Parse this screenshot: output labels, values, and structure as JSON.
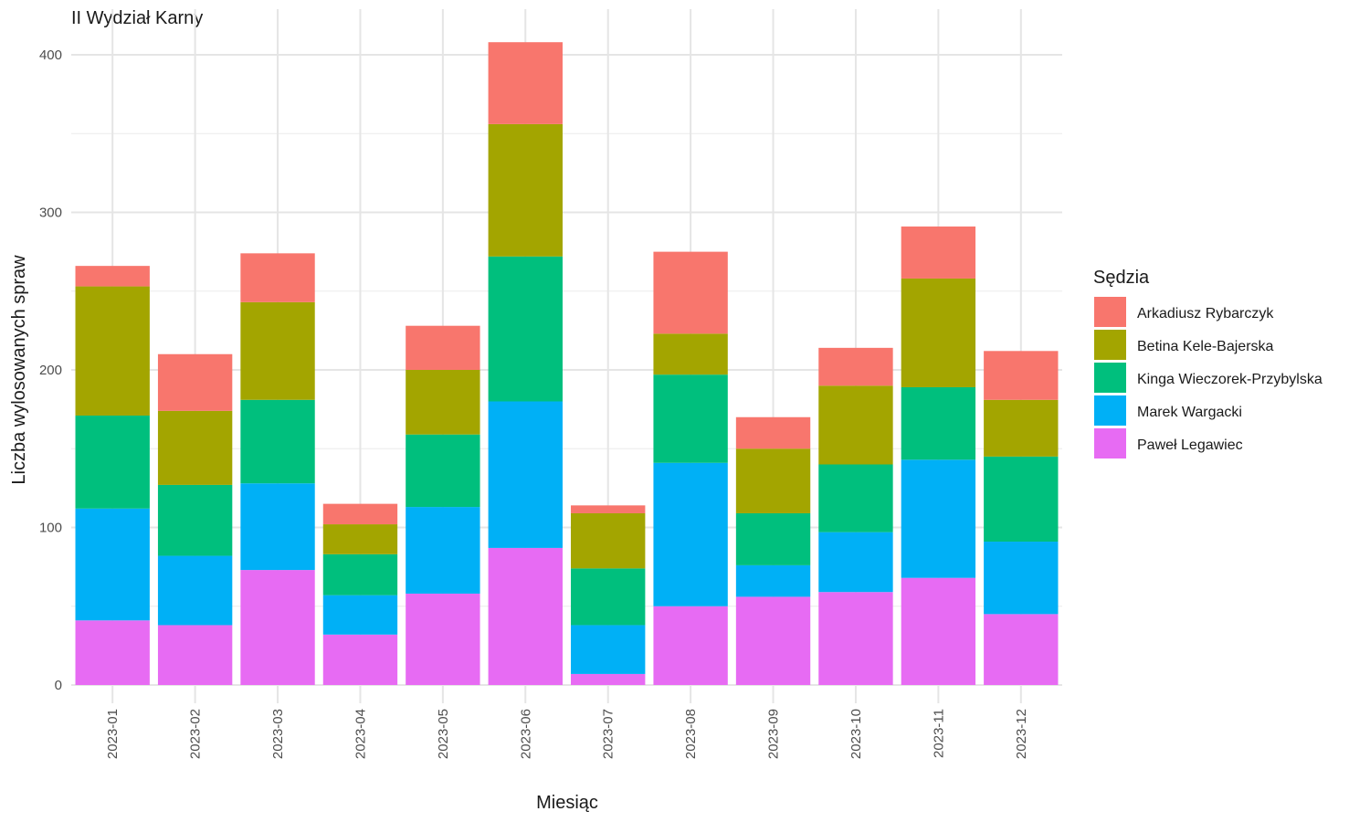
{
  "chart_data": {
    "type": "bar",
    "stacked": true,
    "title": "II Wydział Karny",
    "xlabel": "Miesiąc",
    "ylabel": "Liczba wylosowanych spraw",
    "ylim": [
      0,
      420
    ],
    "yticks": [
      0,
      100,
      200,
      300,
      400
    ],
    "grid": true,
    "legend": {
      "title": "Sędzia",
      "placement": "right"
    },
    "categories": [
      "2023-01",
      "2023-02",
      "2023-03",
      "2023-04",
      "2023-05",
      "2023-06",
      "2023-07",
      "2023-08",
      "2023-09",
      "2023-10",
      "2023-11",
      "2023-12"
    ],
    "series": [
      {
        "name": "Paweł Legawiec",
        "color": "#E76BF3",
        "values": [
          41,
          38,
          73,
          32,
          58,
          87,
          7,
          50,
          56,
          59,
          68,
          45
        ]
      },
      {
        "name": "Marek Wargacki",
        "color": "#00B0F6",
        "values": [
          71,
          44,
          55,
          25,
          55,
          93,
          31,
          91,
          20,
          38,
          75,
          46
        ]
      },
      {
        "name": "Kinga Wieczorek-Przybylska",
        "color": "#00BF7D",
        "values": [
          59,
          45,
          53,
          26,
          46,
          92,
          36,
          56,
          33,
          43,
          46,
          54
        ]
      },
      {
        "name": "Betina Kele-Bajerska",
        "color": "#A3A500",
        "values": [
          82,
          47,
          62,
          19,
          41,
          84,
          35,
          26,
          41,
          50,
          69,
          36
        ]
      },
      {
        "name": "Arkadiusz Rybarczyk",
        "color": "#F8766D",
        "values": [
          13,
          36,
          31,
          13,
          28,
          52,
          5,
          52,
          20,
          24,
          33,
          31
        ]
      }
    ],
    "legend_order": [
      "Arkadiusz Rybarczyk",
      "Betina Kele-Bajerska",
      "Kinga Wieczorek-Przybylska",
      "Marek Wargacki",
      "Paweł Legawiec"
    ]
  }
}
